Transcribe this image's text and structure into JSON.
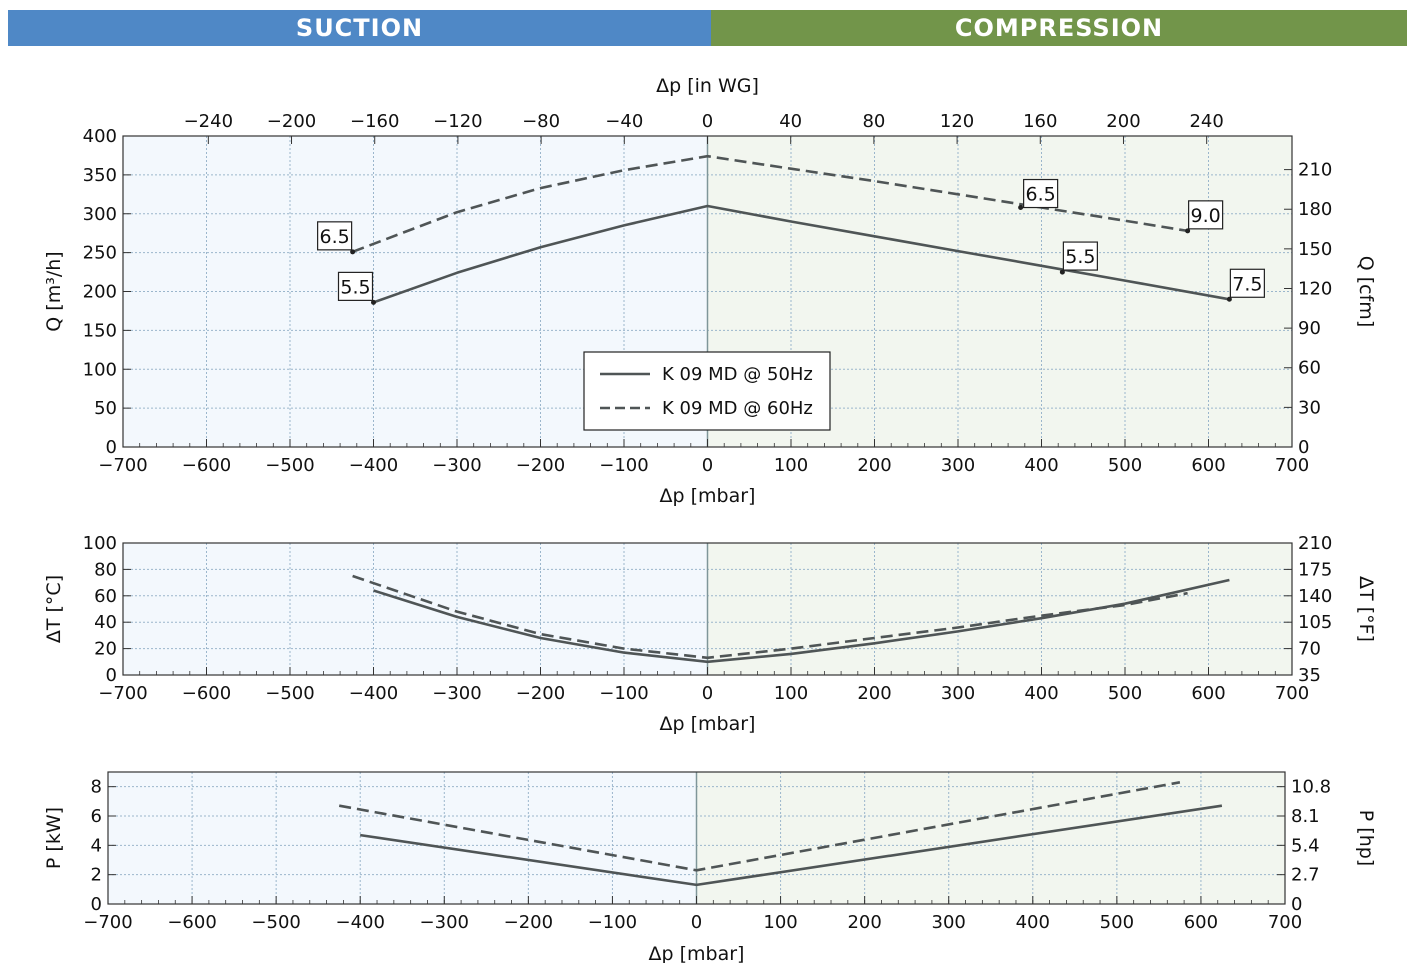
{
  "header": {
    "suction_label": "SUCTION",
    "compression_label": "COMPRESSION",
    "suction_color": "#4f88c6",
    "compression_color": "#72954a"
  },
  "colors": {
    "suction_bg": "#f3f8fd",
    "compression_bg": "#f2f6ef",
    "grid": "#9bb6cc",
    "line": "#4f5556",
    "zero_line": "#7f9699"
  },
  "legend": {
    "series_50hz": "K 09 MD @ 50Hz",
    "series_60hz": "K 09 MD @ 60Hz"
  },
  "chart_data": [
    {
      "type": "line",
      "id": "flow",
      "xlabel": "Δp [mbar]",
      "x2label": "Δp [in WG]",
      "ylabel": "Q [m³/h]",
      "y2label": "Q [cfm]",
      "xlim": [
        -700,
        700
      ],
      "ylim": [
        0,
        400
      ],
      "xticks": [
        -700,
        -600,
        -500,
        -400,
        -300,
        -200,
        -100,
        0,
        100,
        200,
        300,
        400,
        500,
        600,
        700
      ],
      "yticks": [
        0,
        50,
        100,
        150,
        200,
        250,
        300,
        350,
        400
      ],
      "x2ticks": [
        -240,
        -200,
        -160,
        -120,
        -80,
        -40,
        0,
        40,
        80,
        120,
        160,
        200,
        240
      ],
      "y2ticks": [
        0,
        30,
        60,
        90,
        120,
        150,
        180,
        210
      ],
      "legend_position": "center",
      "grid": true,
      "series": [
        {
          "name": "K 09 MD @ 50Hz",
          "style": "solid",
          "x": [
            -400,
            -300,
            -200,
            -100,
            0,
            100,
            200,
            300,
            400,
            500,
            625
          ],
          "y": [
            186,
            224,
            257,
            285,
            310,
            290,
            271,
            252,
            233,
            214,
            190
          ]
        },
        {
          "name": "K 09 MD @ 60Hz",
          "style": "dashed",
          "x": [
            -425,
            -300,
            -200,
            -100,
            0,
            100,
            200,
            300,
            400,
            500,
            575
          ],
          "y": [
            251,
            302,
            333,
            356,
            374,
            358,
            342,
            325,
            308,
            291,
            278
          ]
        }
      ],
      "annotations": [
        {
          "text": "6.5",
          "x": -425,
          "y": 251
        },
        {
          "text": "5.5",
          "x": -400,
          "y": 186
        },
        {
          "text": "6.5",
          "x": 375,
          "y": 308
        },
        {
          "text": "9.0",
          "x": 575,
          "y": 278
        },
        {
          "text": "5.5",
          "x": 425,
          "y": 225
        },
        {
          "text": "7.5",
          "x": 625,
          "y": 190
        }
      ]
    },
    {
      "type": "line",
      "id": "temperature",
      "xlabel": "Δp [mbar]",
      "ylabel": "ΔT [°C]",
      "y2label": "ΔT [°F]",
      "xlim": [
        -700,
        700
      ],
      "ylim": [
        0,
        100
      ],
      "xticks": [
        -700,
        -600,
        -500,
        -400,
        -300,
        -200,
        -100,
        0,
        100,
        200,
        300,
        400,
        500,
        600,
        700
      ],
      "yticks": [
        0,
        20,
        40,
        60,
        80,
        100
      ],
      "y2ticks": [
        35,
        70,
        105,
        140,
        175,
        210
      ],
      "grid": true,
      "series": [
        {
          "name": "K 09 MD @ 50Hz",
          "style": "solid",
          "x": [
            -400,
            -300,
            -200,
            -100,
            0,
            100,
            200,
            300,
            400,
            500,
            625
          ],
          "y": [
            64,
            44,
            28,
            17,
            10,
            16,
            24,
            33,
            43,
            54,
            72
          ]
        },
        {
          "name": "K 09 MD @ 60Hz",
          "style": "dashed",
          "x": [
            -425,
            -300,
            -200,
            -100,
            0,
            100,
            200,
            300,
            400,
            500,
            575
          ],
          "y": [
            75,
            48,
            31,
            20,
            13,
            20,
            28,
            36,
            45,
            53,
            62
          ]
        }
      ]
    },
    {
      "type": "line",
      "id": "power",
      "xlabel": "Δp [mbar]",
      "ylabel": "P [kW]",
      "y2label": "P [hp]",
      "xlim": [
        -700,
        700
      ],
      "ylim": [
        0,
        9
      ],
      "xticks": [
        -700,
        -600,
        -500,
        -400,
        -300,
        -200,
        -100,
        0,
        100,
        200,
        300,
        400,
        500,
        600,
        700
      ],
      "yticks": [
        0,
        2,
        4,
        6,
        8
      ],
      "y2ticks": [
        0,
        2.7,
        5.4,
        8.1,
        10.8
      ],
      "grid": true,
      "series": [
        {
          "name": "K 09 MD @ 50Hz",
          "style": "solid",
          "x": [
            -400,
            0,
            625
          ],
          "y": [
            4.7,
            1.3,
            6.7
          ]
        },
        {
          "name": "K 09 MD @ 60Hz",
          "style": "dashed",
          "x": [
            -425,
            0,
            575
          ],
          "y": [
            6.7,
            2.3,
            8.3
          ]
        }
      ]
    }
  ]
}
